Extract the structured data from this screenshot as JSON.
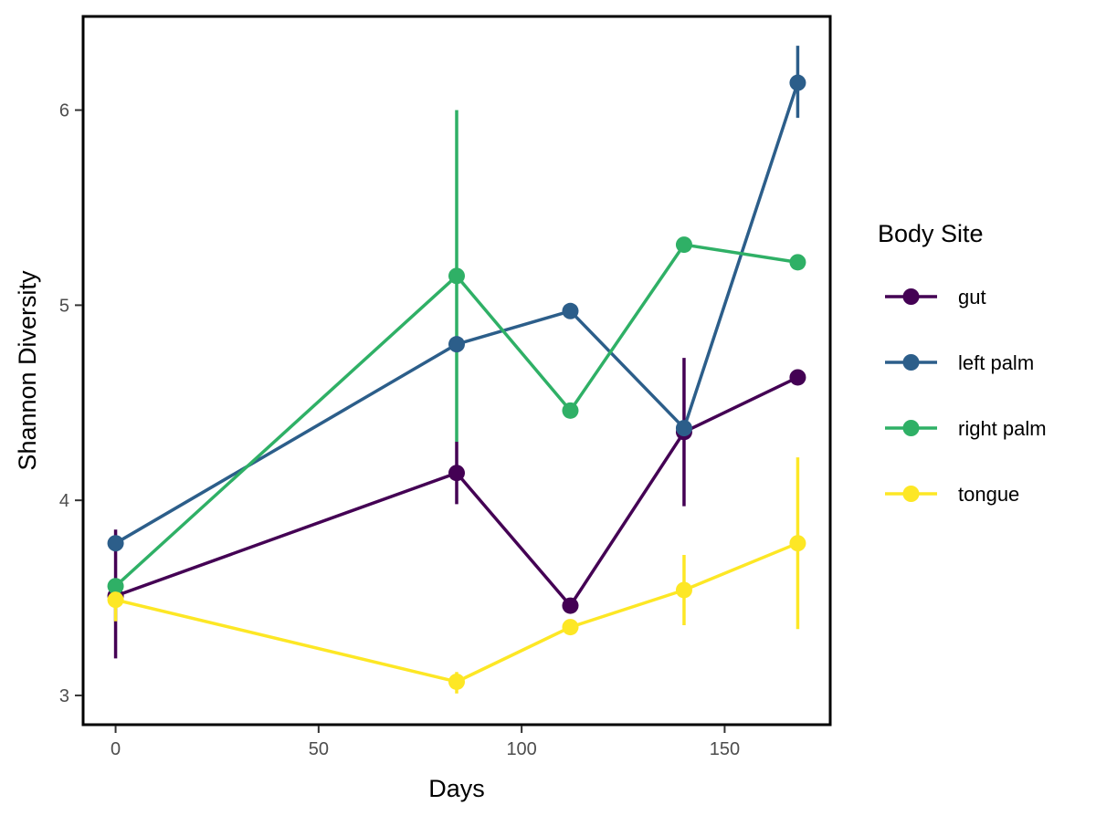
{
  "chart_data": {
    "type": "line",
    "xlabel": "Days",
    "ylabel": "Shannon Diversity",
    "xlim": [
      -8,
      176
    ],
    "ylim": [
      2.85,
      6.48
    ],
    "xticks": [
      0,
      50,
      100,
      150
    ],
    "yticks": [
      3,
      4,
      5,
      6
    ],
    "grid": false,
    "error_bars": true,
    "legend": {
      "title": "Body Site",
      "position": "right"
    },
    "series": [
      {
        "name": "gut",
        "color": "#440154",
        "x": [
          0,
          84,
          112,
          140,
          168
        ],
        "y": [
          3.51,
          4.14,
          3.46,
          4.35,
          4.63
        ],
        "err_low": [
          3.19,
          3.98,
          3.46,
          3.97,
          4.63
        ],
        "err_high": [
          3.85,
          4.3,
          3.46,
          4.73,
          4.63
        ]
      },
      {
        "name": "left palm",
        "color": "#2c5e8a",
        "x": [
          0,
          84,
          112,
          140,
          168
        ],
        "y": [
          3.78,
          4.8,
          4.97,
          4.37,
          6.14
        ],
        "err_low": [
          3.78,
          4.8,
          4.97,
          4.37,
          5.96
        ],
        "err_high": [
          3.78,
          4.8,
          4.97,
          4.37,
          6.33
        ]
      },
      {
        "name": "right palm",
        "color": "#2fb066",
        "x": [
          0,
          84,
          112,
          140,
          168
        ],
        "y": [
          3.56,
          5.15,
          4.46,
          5.31,
          5.22
        ],
        "err_low": [
          3.56,
          4.3,
          4.46,
          5.31,
          5.22
        ],
        "err_high": [
          3.56,
          6.0,
          4.46,
          5.31,
          5.22
        ]
      },
      {
        "name": "tongue",
        "color": "#fde725",
        "x": [
          0,
          84,
          112,
          140,
          168
        ],
        "y": [
          3.49,
          3.07,
          3.35,
          3.54,
          3.78
        ],
        "err_low": [
          3.38,
          3.01,
          3.35,
          3.36,
          3.34
        ],
        "err_high": [
          3.6,
          3.12,
          3.35,
          3.72,
          4.22
        ]
      }
    ]
  }
}
